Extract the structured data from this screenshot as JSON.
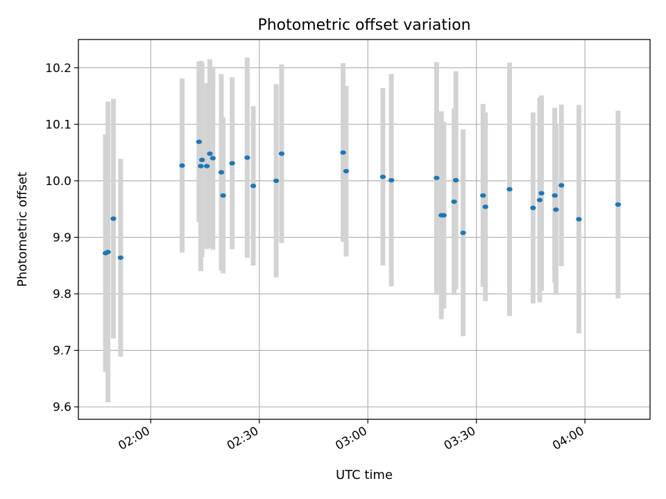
{
  "chart_data": {
    "type": "scatter",
    "title": "Photometric offset variation",
    "xlabel": "UTC time",
    "ylabel": "Photometric offset",
    "x_unit": "UTC time (HH:MM)",
    "xlim": [
      "01:40",
      "04:18"
    ],
    "ylim": [
      9.578,
      10.25
    ],
    "x_ticks": [
      "02:00",
      "02:30",
      "03:00",
      "03:30",
      "04:00"
    ],
    "y_ticks": [
      "9.6",
      "9.7",
      "9.8",
      "9.9",
      "10.0",
      "10.1",
      "10.2"
    ],
    "grid": true,
    "series": [
      {
        "marker_color": "#1f77b4",
        "errorbar_color": "#d3d3d3",
        "points": [
          {
            "x": "01:47:30",
            "y": 9.872,
            "err": 0.21
          },
          {
            "x": "01:48:10",
            "y": 9.874,
            "err": 0.266
          },
          {
            "x": "01:49:40",
            "y": 9.933,
            "err": 0.212
          },
          {
            "x": "01:51:40",
            "y": 9.864,
            "err": 0.175
          },
          {
            "x": "02:08:40",
            "y": 10.027,
            "err": 0.154
          },
          {
            "x": "02:13:20",
            "y": 10.069,
            "err": 0.142
          },
          {
            "x": "02:13:50",
            "y": 10.026,
            "err": 0.186
          },
          {
            "x": "02:14:10",
            "y": 10.037,
            "err": 0.172
          },
          {
            "x": "02:15:30",
            "y": 10.026,
            "err": 0.147
          },
          {
            "x": "02:16:20",
            "y": 10.048,
            "err": 0.167
          },
          {
            "x": "02:17:10",
            "y": 10.04,
            "err": 0.162
          },
          {
            "x": "02:19:30",
            "y": 10.015,
            "err": 0.174
          },
          {
            "x": "02:20:00",
            "y": 9.974,
            "err": 0.138
          },
          {
            "x": "02:22:30",
            "y": 10.031,
            "err": 0.152
          },
          {
            "x": "02:26:40",
            "y": 10.041,
            "err": 0.177
          },
          {
            "x": "02:28:20",
            "y": 9.991,
            "err": 0.141
          },
          {
            "x": "02:34:40",
            "y": 10.0,
            "err": 0.171
          },
          {
            "x": "02:36:10",
            "y": 10.048,
            "err": 0.158
          },
          {
            "x": "02:53:10",
            "y": 10.05,
            "err": 0.158
          },
          {
            "x": "02:54:00",
            "y": 10.017,
            "err": 0.151
          },
          {
            "x": "03:04:10",
            "y": 10.007,
            "err": 0.157
          },
          {
            "x": "03:06:30",
            "y": 10.001,
            "err": 0.188
          },
          {
            "x": "03:19:00",
            "y": 10.005,
            "err": 0.205
          },
          {
            "x": "03:20:20",
            "y": 9.939,
            "err": 0.184
          },
          {
            "x": "03:21:00",
            "y": 9.939,
            "err": 0.165
          },
          {
            "x": "03:23:50",
            "y": 9.963,
            "err": 0.165
          },
          {
            "x": "03:24:20",
            "y": 10.001,
            "err": 0.193
          },
          {
            "x": "03:26:20",
            "y": 9.908,
            "err": 0.183
          },
          {
            "x": "03:31:50",
            "y": 9.974,
            "err": 0.162
          },
          {
            "x": "03:32:30",
            "y": 9.954,
            "err": 0.167
          },
          {
            "x": "03:39:10",
            "y": 9.985,
            "err": 0.224
          },
          {
            "x": "03:45:40",
            "y": 9.952,
            "err": 0.169
          },
          {
            "x": "03:47:30",
            "y": 9.966,
            "err": 0.181
          },
          {
            "x": "03:48:00",
            "y": 9.978,
            "err": 0.173
          },
          {
            "x": "03:51:40",
            "y": 9.974,
            "err": 0.155
          },
          {
            "x": "03:52:00",
            "y": 9.949,
            "err": 0.151
          },
          {
            "x": "03:53:30",
            "y": 9.992,
            "err": 0.143
          },
          {
            "x": "03:58:20",
            "y": 9.932,
            "err": 0.202
          },
          {
            "x": "04:09:10",
            "y": 9.958,
            "err": 0.166
          }
        ]
      }
    ]
  }
}
